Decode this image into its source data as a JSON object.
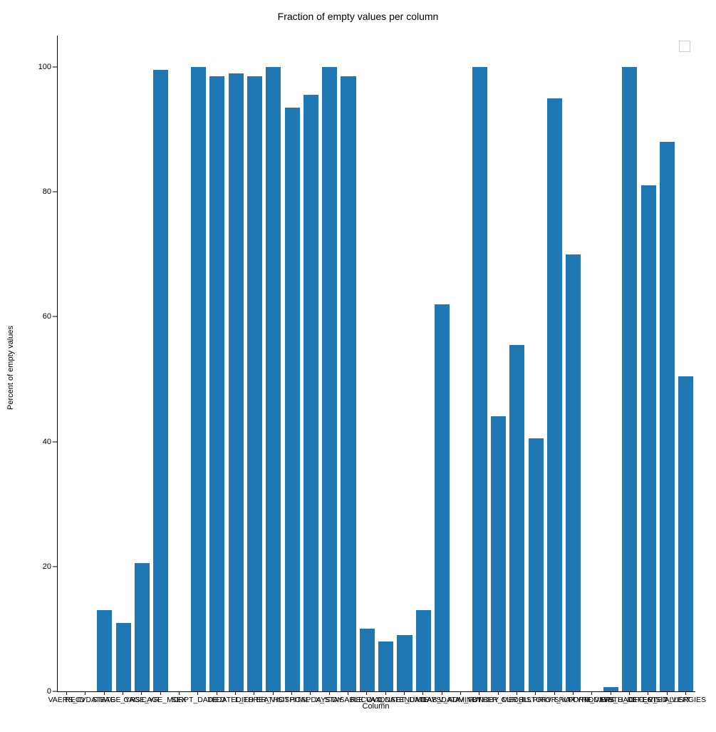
{
  "chart": {
    "type": "bar",
    "title": "Fraction of empty values per column",
    "title_fontsize": 14,
    "xlabel": "Column",
    "ylabel": "Percent of empty values",
    "label_fontsize": 11,
    "tick_fontsize": 11,
    "background_color": "#ffffff",
    "bar_color": "#1f77b4",
    "axis_color": "#000000",
    "text_color": "#000000",
    "ylim": [
      0,
      105
    ],
    "yticks": [
      0,
      20,
      40,
      60,
      80,
      100
    ],
    "bar_width": 0.8,
    "legend_visible": true,
    "legend_empty": true,
    "categories": [
      "VAERS_ID",
      "RECVDATE",
      "STATE",
      "AGE_YRS",
      "CAGE_YR",
      "CAGE_MO",
      "SEX",
      "RPT_DATE",
      "DIED",
      "DATEDIED",
      "L_THREAT",
      "ER_VISIT",
      "HOSPITAL",
      "HOSPDAYS",
      "X_STAY",
      "DISABLE",
      "RECOVD",
      "VAX_DATE",
      "ONSET_DATE",
      "NUMDAYS",
      "LAB_DATA",
      "V_ADMINBY",
      "V_FUNDBY",
      "OTHER_MEDS",
      "CUR_ILL",
      "HISTORY",
      "PRIOR_VAX",
      "SPLTTYPE",
      "FORM_VERS",
      "TODAYS_DATE",
      "BIRTH_DEFECT",
      "OFC_VISIT",
      "ER_ED_VISIT",
      "ALLERGIES"
    ],
    "values": [
      0,
      0,
      13,
      11,
      20.5,
      99.5,
      0,
      100,
      98.5,
      99,
      98.5,
      100,
      93.5,
      95.5,
      100,
      98.5,
      10,
      8,
      9,
      13,
      62,
      0,
      100,
      44,
      55.5,
      40.5,
      95,
      70,
      0,
      0.7,
      100,
      81,
      88,
      50.5
    ]
  }
}
